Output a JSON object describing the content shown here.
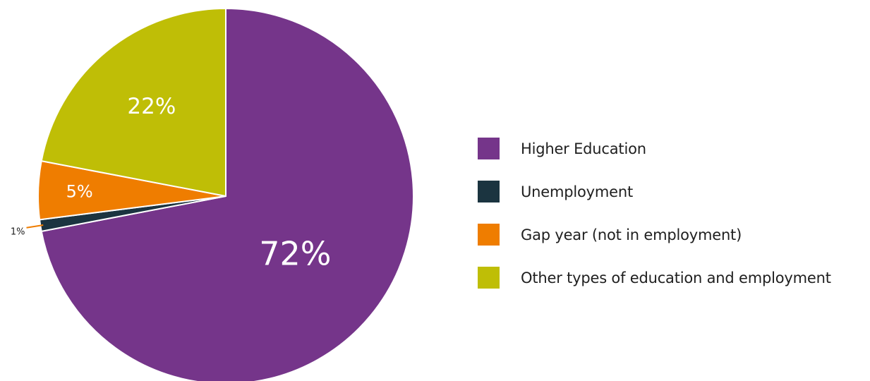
{
  "chart_data": {
    "type": "pie",
    "title": "",
    "start_angle_deg": 0,
    "direction": "clockwise",
    "slices": [
      {
        "name": "Higher Education",
        "value": 72,
        "label": "72%",
        "color": "#75358a"
      },
      {
        "name": "Unemployment",
        "value": 1,
        "label": "1%",
        "color": "#1b3440"
      },
      {
        "name": "Gap year (not in employment)",
        "value": 5,
        "label": "5%",
        "color": "#ef7d00"
      },
      {
        "name": "Other types of education and employment",
        "value": 22,
        "label": "22%",
        "color": "#bfbe06"
      }
    ],
    "legend_position": "right"
  },
  "legend": {
    "items": [
      {
        "label": "Higher Education",
        "color": "#75358a"
      },
      {
        "label": "Unemployment",
        "color": "#1b3440"
      },
      {
        "label": "Gap year (not in employment)",
        "color": "#ef7d00"
      },
      {
        "label": "Other types of education and employment",
        "color": "#bfbe06"
      }
    ]
  }
}
